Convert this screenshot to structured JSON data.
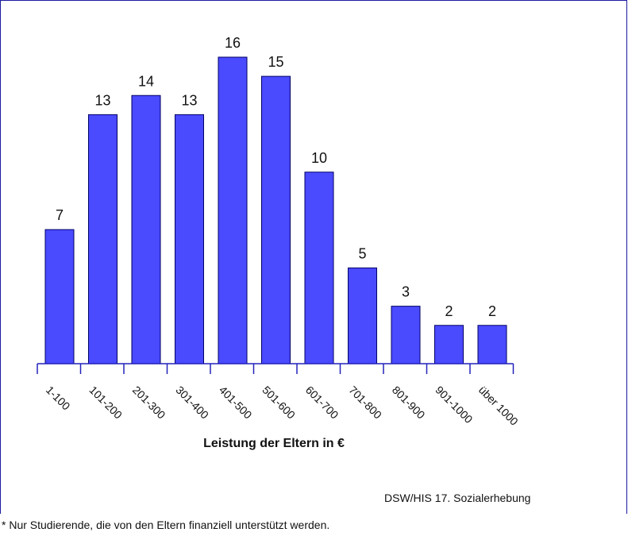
{
  "chart_data": {
    "type": "bar",
    "categories": [
      "1-100",
      "101-200",
      "201-300",
      "301-400",
      "401-500",
      "501-600",
      "601-700",
      "701-800",
      "801-900",
      "901-1000",
      "über 1000"
    ],
    "values": [
      7,
      13,
      14,
      13,
      16,
      15,
      10,
      5,
      3,
      2,
      2
    ],
    "xlabel": "Leistung der Eltern in €",
    "ylim": [
      0,
      16
    ],
    "grid": false,
    "bar_color": "#4a4aff",
    "bar_border": "#000066",
    "axis_color": "#2222bb"
  },
  "source": "DSW/HIS 17. Sozialerhebung",
  "footnote": "* Nur Studierende, die von den Eltern finanziell unterstützt werden."
}
